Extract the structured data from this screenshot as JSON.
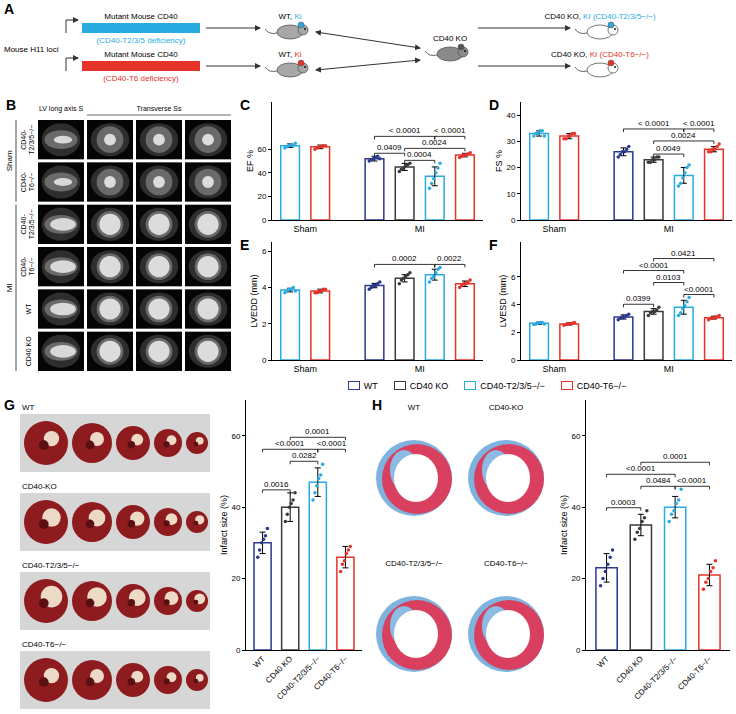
{
  "panel_a": {
    "panel": "A",
    "locus": "Mouse H11 loci",
    "cross": "CD40 KO",
    "tracks": [
      {
        "title": "Mutant Mouse CD40",
        "subtitle": "(CD40-T2/3/5 deficiency)",
        "color": "#29abe2",
        "founder": [
          "WT, ",
          "Ki"
        ],
        "offspring": [
          "CD40 KO, ",
          "KI (CD40-T2/3/5−/−)"
        ]
      },
      {
        "title": "Mutant Mouse CD40",
        "subtitle": "(CD40-T6 deficiency)",
        "color": "#e6332a",
        "founder": [
          "WT, ",
          "Ki"
        ],
        "offspring": [
          "CD40 KO, ",
          "KI (CD40-T6−/−)"
        ]
      }
    ]
  },
  "panel_b": {
    "panel": "B",
    "columns": [
      "LV long axis S",
      "Transverse Ss"
    ],
    "groups": [
      {
        "name": "Sham",
        "rows": [
          "CD40-T2/3/5−/−",
          "CD40-T6−/−"
        ]
      },
      {
        "name": "MI",
        "rows": [
          "CD40-T2/3/5−/−",
          "CD40-T6−/−",
          "WT",
          "CD40 KO"
        ]
      }
    ]
  },
  "chart_data": [
    {
      "panel": "C",
      "type": "bar",
      "ylabel": "EF %",
      "categories": [
        "Sham",
        "MI"
      ],
      "ylim": [
        0,
        100
      ],
      "yticks": [
        0,
        20,
        40,
        60
      ],
      "series": [
        {
          "name": "WT",
          "color": "#2b3990",
          "values": [
            null,
            52
          ],
          "error": [
            null,
            2
          ],
          "points": [
            null,
            [
              50,
              51,
              52,
              53,
              54,
              52
            ]
          ]
        },
        {
          "name": "CD40 KO",
          "color": "#3a3a3a",
          "values": [
            null,
            45
          ],
          "error": [
            null,
            3
          ],
          "points": [
            null,
            [
              41,
              43,
              44,
              46,
              47,
              48
            ]
          ]
        },
        {
          "name": "CD40-T2/3/5−/−",
          "color": "#29abe2",
          "values": [
            63,
            37
          ],
          "error": [
            1.5,
            8
          ],
          "points": [
            [
              61,
              62,
              63,
              64,
              63,
              65
            ],
            [
              27,
              31,
              35,
              40,
              44,
              48
            ]
          ]
        },
        {
          "name": "CD40-T6−/−",
          "color": "#e6332a",
          "values": [
            62,
            55
          ],
          "error": [
            1.5,
            1.5
          ],
          "points": [
            [
              60,
              61,
              62,
              62,
              63,
              63
            ],
            [
              53,
              54,
              55,
              55,
              56,
              57
            ]
          ]
        }
      ],
      "comparisons": [
        {
          "category": "MI",
          "from": "CD40 KO",
          "to": "CD40-T2/3/5−/−",
          "label": "0.0004"
        },
        {
          "category": "MI",
          "from": "WT",
          "to": "CD40 KO",
          "label": "0.0409"
        },
        {
          "category": "MI",
          "from": "CD40 KO",
          "to": "CD40-T6−/−",
          "label": "0.0024"
        },
        {
          "category": "MI",
          "from": "WT",
          "to": "CD40-T2/3/5−/−",
          "label": "< 0.0001"
        },
        {
          "category": "MI",
          "from": "CD40-T2/3/5−/−",
          "to": "CD40-T6−/−",
          "label": "< 0.0001"
        }
      ]
    },
    {
      "panel": "D",
      "type": "bar",
      "ylabel": "FS %",
      "categories": [
        "Sham",
        "MI"
      ],
      "ylim": [
        0,
        45
      ],
      "yticks": [
        0,
        10,
        20,
        30,
        40
      ],
      "series": [
        {
          "name": "WT",
          "color": "#2b3990",
          "values": [
            null,
            26
          ],
          "error": [
            null,
            1.5
          ],
          "points": [
            null,
            [
              24,
              25,
              26,
              26,
              27,
              28
            ]
          ]
        },
        {
          "name": "CD40 KO",
          "color": "#3a3a3a",
          "values": [
            null,
            23
          ],
          "error": [
            null,
            1
          ],
          "points": [
            null,
            [
              22,
              22,
              23,
              23,
              24,
              24
            ]
          ]
        },
        {
          "name": "CD40-T2/3/5−/−",
          "color": "#29abe2",
          "values": [
            33,
            17
          ],
          "error": [
            1,
            3
          ],
          "points": [
            [
              32,
              33,
              33,
              34,
              34,
              32
            ],
            [
              13,
              14,
              16,
              18,
              20,
              21
            ]
          ]
        },
        {
          "name": "CD40-T6−/−",
          "color": "#e6332a",
          "values": [
            32,
            27
          ],
          "error": [
            1,
            1
          ],
          "points": [
            [
              31,
              31,
              32,
              32,
              33,
              33
            ],
            [
              26,
              26,
              27,
              27,
              28,
              29
            ]
          ]
        }
      ],
      "comparisons": [
        {
          "category": "MI",
          "from": "CD40 KO",
          "to": "CD40-T2/3/5−/−",
          "label": "0.0049"
        },
        {
          "category": "MI",
          "from": "CD40 KO",
          "to": "CD40-T6−/−",
          "label": "0.0024"
        },
        {
          "category": "MI",
          "from": "WT",
          "to": "CD40-T2/3/5−/−",
          "label": "< 0.0001"
        },
        {
          "category": "MI",
          "from": "CD40-T2/3/5−/−",
          "to": "CD40-T6−/−",
          "label": "< 0.0001"
        }
      ]
    },
    {
      "panel": "E",
      "type": "bar",
      "ylabel": "LVEDD (mm)",
      "categories": [
        "Sham",
        "MI"
      ],
      "ylim": [
        0,
        6.5
      ],
      "yticks": [
        0,
        2,
        4,
        6
      ],
      "series": [
        {
          "name": "WT",
          "color": "#2b3990",
          "values": [
            null,
            4.1
          ],
          "error": [
            null,
            0.12
          ],
          "points": [
            null,
            [
              3.9,
              4.0,
              4.1,
              4.1,
              4.2,
              4.3
            ]
          ]
        },
        {
          "name": "CD40 KO",
          "color": "#3a3a3a",
          "values": [
            null,
            4.5
          ],
          "error": [
            null,
            0.2
          ],
          "points": [
            null,
            [
              4.2,
              4.4,
              4.5,
              4.6,
              4.7,
              4.8
            ]
          ]
        },
        {
          "name": "CD40-T2/3/5−/−",
          "color": "#29abe2",
          "values": [
            3.85,
            4.7
          ],
          "error": [
            0.1,
            0.3
          ],
          "points": [
            [
              3.7,
              3.8,
              3.9,
              3.9,
              4.0,
              3.8
            ],
            [
              4.3,
              4.5,
              4.6,
              4.8,
              5.0,
              5.1
            ]
          ]
        },
        {
          "name": "CD40-T6−/−",
          "color": "#e6332a",
          "values": [
            3.8,
            4.2
          ],
          "error": [
            0.1,
            0.15
          ],
          "points": [
            [
              3.7,
              3.7,
              3.8,
              3.8,
              3.9,
              3.9
            ],
            [
              4.0,
              4.1,
              4.2,
              4.2,
              4.3,
              4.4
            ]
          ]
        }
      ],
      "comparisons": [
        {
          "category": "MI",
          "from": "WT",
          "to": "CD40-T2/3/5−/−",
          "label": "0.0002"
        },
        {
          "category": "MI",
          "from": "CD40-T2/3/5−/−",
          "to": "CD40-T6−/−",
          "label": "0.0022"
        }
      ]
    },
    {
      "panel": "F",
      "type": "bar",
      "ylabel": "LVESD (mm)",
      "categories": [
        "Sham",
        "MI"
      ],
      "ylim": [
        0,
        8.5
      ],
      "yticks": [
        0,
        2,
        4,
        6
      ],
      "legend": "bottom",
      "series": [
        {
          "name": "WT",
          "color": "#2b3990",
          "values": [
            null,
            3.1
          ],
          "error": [
            null,
            0.15
          ],
          "points": [
            null,
            [
              2.9,
              3.0,
              3.1,
              3.1,
              3.2,
              3.3
            ]
          ]
        },
        {
          "name": "CD40 KO",
          "color": "#3a3a3a",
          "values": [
            null,
            3.5
          ],
          "error": [
            null,
            0.2
          ],
          "points": [
            null,
            [
              3.2,
              3.4,
              3.5,
              3.5,
              3.6,
              3.8
            ]
          ]
        },
        {
          "name": "CD40-T2/3/5−/−",
          "color": "#29abe2",
          "values": [
            2.65,
            3.8
          ],
          "error": [
            0.08,
            0.5
          ],
          "points": [
            [
              2.55,
              2.6,
              2.65,
              2.7,
              2.7,
              2.6
            ],
            [
              3.2,
              3.4,
              3.7,
              3.9,
              4.2,
              4.5
            ]
          ]
        },
        {
          "name": "CD40-T6−/−",
          "color": "#e6332a",
          "values": [
            2.6,
            3.05
          ],
          "error": [
            0.08,
            0.1
          ],
          "points": [
            [
              2.5,
              2.55,
              2.6,
              2.6,
              2.65,
              2.7
            ],
            [
              2.9,
              3.0,
              3.0,
              3.1,
              3.1,
              3.2
            ]
          ]
        }
      ],
      "comparisons": [
        {
          "category": "MI",
          "from": "WT",
          "to": "CD40 KO",
          "label": "0.0399"
        },
        {
          "category": "MI",
          "from": "CD40-T2/3/5−/−",
          "to": "CD40-T6−/−",
          "label": "<0.0001"
        },
        {
          "category": "MI",
          "from": "CD40 KO",
          "to": "CD40-T2/3/5−/−",
          "label": "0.0103"
        },
        {
          "category": "MI",
          "from": "WT",
          "to": "CD40-T2/3/5−/−",
          "label": "<0.0001"
        },
        {
          "category": "MI",
          "from": "CD40 KO",
          "to": "CD40-T6−/−",
          "label": "0.0421"
        }
      ]
    },
    {
      "panel": "G",
      "type": "bar",
      "ylabel": "Infarct size (%)",
      "image_labels": [
        "WT",
        "CD40-KO",
        "CD40-T2/3/5−/−",
        "CD40-T6−/−"
      ],
      "categories": [
        "WT",
        "CD40 KO",
        "CD40-T2/3/5−/−",
        "CD40-T6−/−"
      ],
      "values": [
        30,
        40,
        47,
        26
      ],
      "error": [
        3,
        4,
        4,
        3
      ],
      "points": [
        [
          26,
          28,
          30,
          31,
          32,
          34
        ],
        [
          36,
          38,
          40,
          41,
          42,
          44
        ],
        [
          42,
          44,
          46,
          48,
          49,
          52
        ],
        [
          22,
          24,
          25,
          27,
          28,
          29
        ]
      ],
      "colors": [
        "#2b3990",
        "#3a3a3a",
        "#29abe2",
        "#e6332a"
      ],
      "ylim": [
        0,
        70
      ],
      "yticks": [
        0,
        20,
        40,
        60
      ],
      "comparisons": [
        {
          "from": "WT",
          "to": "CD40 KO",
          "label": "0.0016"
        },
        {
          "from": "CD40 KO",
          "to": "CD40-T2/3/5−/−",
          "label": "0.0282"
        },
        {
          "from": "WT",
          "to": "CD40-T2/3/5−/−",
          "label": "<0.0001"
        },
        {
          "from": "CD40-T2/3/5−/−",
          "to": "CD40-T6−/−",
          "label": "<0.0001"
        },
        {
          "from": "CD40 KO",
          "to": "CD40-T6−/−",
          "label": "0.0001"
        }
      ]
    },
    {
      "panel": "H",
      "type": "bar",
      "ylabel": "Infarct size (%)",
      "image_labels": [
        "WT",
        "CD40-KO",
        "CD40-T2/3/5−/−",
        "CD40-T6−/−"
      ],
      "categories": [
        "WT",
        "CD40 KO",
        "CD40-T2/3/5−/−",
        "CD40-T6−/−"
      ],
      "values": [
        23,
        35,
        40,
        21
      ],
      "error": [
        4,
        3,
        3,
        3
      ],
      "points": [
        [
          18,
          20,
          22,
          24,
          26,
          28
        ],
        [
          31,
          33,
          34,
          36,
          37,
          39
        ],
        [
          36,
          38,
          39,
          41,
          42,
          45
        ],
        [
          17,
          19,
          20,
          22,
          23,
          25
        ]
      ],
      "colors": [
        "#2b3990",
        "#3a3a3a",
        "#29abe2",
        "#e6332a"
      ],
      "ylim": [
        0,
        70
      ],
      "yticks": [
        0,
        20,
        40,
        60
      ],
      "comparisons": [
        {
          "from": "WT",
          "to": "CD40 KO",
          "label": "0.0003"
        },
        {
          "from": "CD40 KO",
          "to": "CD40-T2/3/5−/−",
          "label": "0.0484"
        },
        {
          "from": "WT",
          "to": "CD40-T2/3/5−/−",
          "label": "<0.0001"
        },
        {
          "from": "CD40-T2/3/5−/−",
          "to": "CD40-T6−/−",
          "label": "<0.0001"
        },
        {
          "from": "CD40 KO",
          "to": "CD40-T6−/−",
          "label": "0.0001"
        }
      ]
    }
  ]
}
